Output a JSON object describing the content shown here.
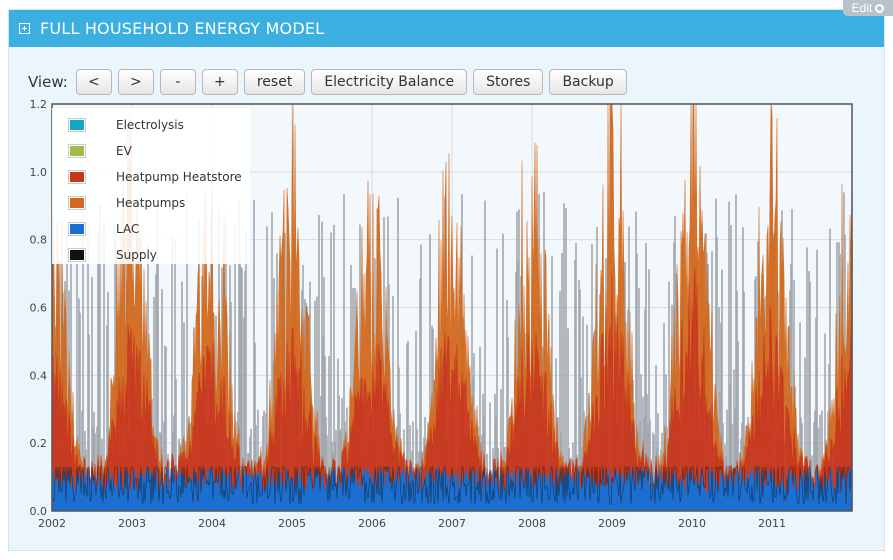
{
  "panel": {
    "title": "FULL HOUSEHOLD ENERGY MODEL",
    "edit_label": "Edit",
    "header_color": "#3bb0e0"
  },
  "toolbar": {
    "view_label": "View:",
    "prev_label": "<",
    "next_label": ">",
    "zoom_out_label": "-",
    "zoom_in_label": "+",
    "reset_label": "reset",
    "electricity_balance_label": "Electricity Balance",
    "stores_label": "Stores",
    "backup_label": "Backup"
  },
  "chart_data": {
    "type": "area",
    "title": "",
    "xlabel": "",
    "ylabel": "",
    "xlim": [
      2002,
      2012
    ],
    "ylim": [
      0,
      1.2
    ],
    "x_ticks": [
      "2002",
      "2003",
      "2004",
      "2005",
      "2006",
      "2007",
      "2008",
      "2009",
      "2010",
      "2011"
    ],
    "y_ticks": [
      "0.0",
      "0.2",
      "0.4",
      "0.6",
      "0.8",
      "1.0",
      "1.2"
    ],
    "grid": true,
    "legend_position": "top-left",
    "series": [
      {
        "name": "Electrolysis",
        "color": "#11a8c8",
        "typical": 0.0,
        "peak": 0.0
      },
      {
        "name": "EV",
        "color": "#a3b948",
        "typical": 0.0,
        "peak": 0.0
      },
      {
        "name": "Heatpump Heatstore",
        "color": "#c8361a",
        "winter_typical": 0.35,
        "summer_typical": 0.1,
        "peak": 0.55
      },
      {
        "name": "Heatpumps",
        "color": "#d2691e",
        "winter_typical": 0.5,
        "summer_typical": 0.05,
        "peak": 1.1
      },
      {
        "name": "LAC",
        "color": "#1a6fd0",
        "typical": 0.07,
        "peak": 0.12
      },
      {
        "name": "Supply",
        "color": "#111111",
        "typical": 0.3,
        "peak": 1.02
      }
    ]
  }
}
